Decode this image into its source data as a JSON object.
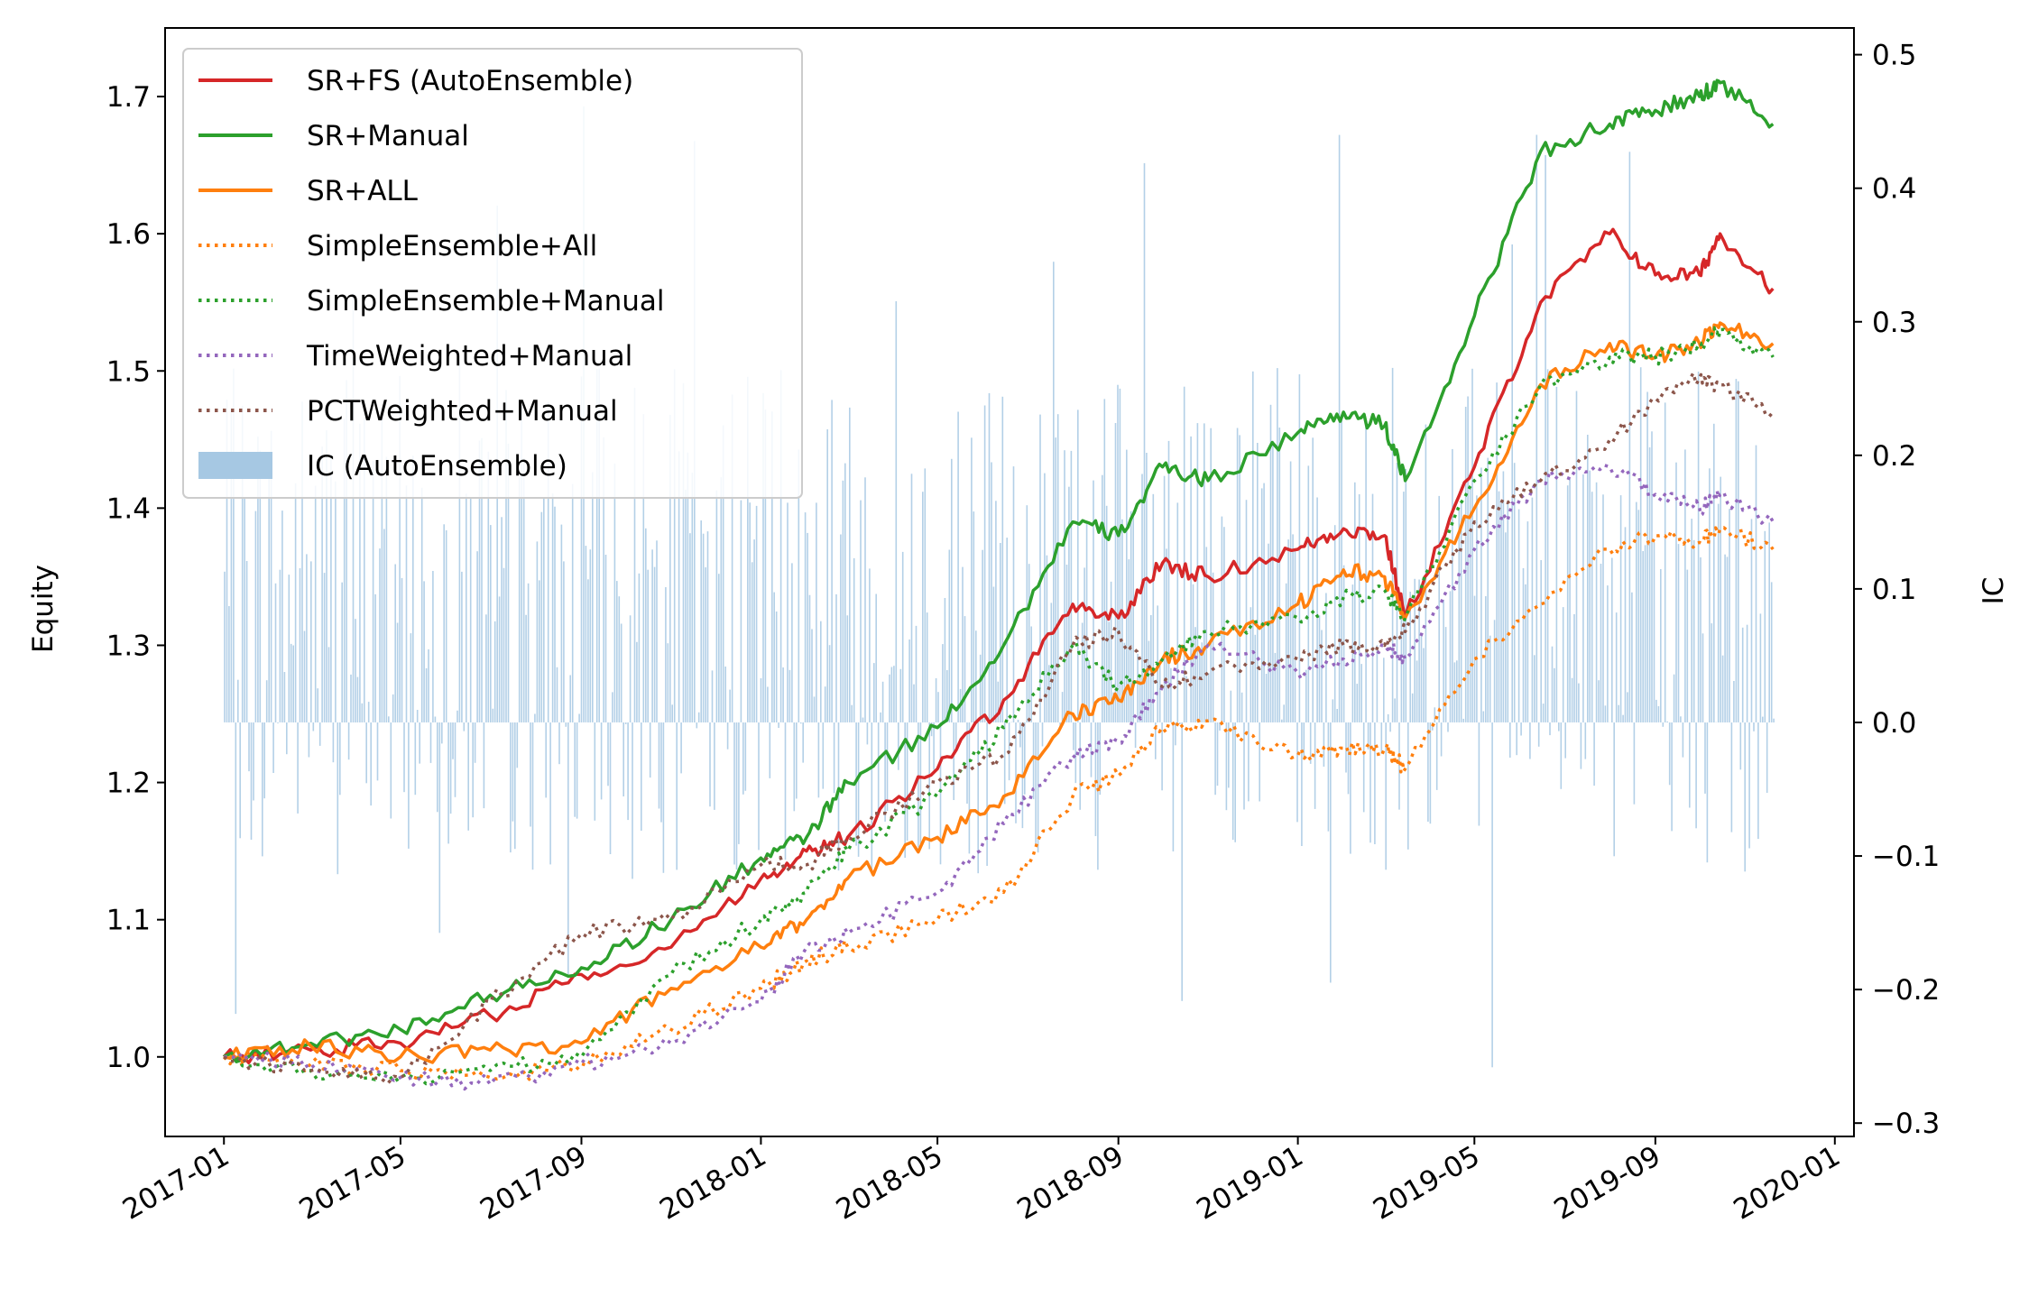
{
  "chart_data": {
    "type": "line",
    "xlabel": "",
    "ylabel": "Equity",
    "y2label": "IC",
    "xlim": [
      "2016-11-22",
      "2020-01-14"
    ],
    "ylim": [
      0.942,
      1.75
    ],
    "y2lim": [
      -0.31,
      0.52
    ],
    "xticks": [
      "2017-01-01",
      "2017-05-01",
      "2017-09-01",
      "2018-01-01",
      "2018-05-01",
      "2018-09-01",
      "2019-01-01",
      "2019-05-01",
      "2019-09-01",
      "2020-01-01"
    ],
    "xtick_labels": [
      "2017-01",
      "2017-05",
      "2017-09",
      "2018-01",
      "2018-05",
      "2018-09",
      "2019-01",
      "2019-05",
      "2019-09",
      "2020-01"
    ],
    "yticks": [
      "1.0",
      "1.1",
      "1.2",
      "1.3",
      "1.4",
      "1.5",
      "1.6",
      "1.7"
    ],
    "y2ticks": [
      "−0.3",
      "−0.2",
      "−0.1",
      "0.0",
      "0.1",
      "0.2",
      "0.3",
      "0.4",
      "0.5"
    ],
    "legend_position": "upper-left",
    "grid": false,
    "series": [
      {
        "name": "SR+FS (AutoEnsemble)",
        "color": "#d62728",
        "style": "solid",
        "x": [
          "2017-01-01",
          "2017-03-01",
          "2017-05-01",
          "2017-07-01",
          "2017-09-01",
          "2017-11-01",
          "2018-01-01",
          "2018-02-01",
          "2018-03-01",
          "2018-05-01",
          "2018-06-15",
          "2018-08-01",
          "2018-09-01",
          "2018-10-01",
          "2018-11-01",
          "2019-01-01",
          "2019-02-01",
          "2019-03-01",
          "2019-03-15",
          "2019-05-01",
          "2019-06-15",
          "2019-08-01",
          "2019-09-01",
          "2019-10-01",
          "2019-10-15",
          "2019-11-20"
        ],
        "y": [
          1.0,
          1.005,
          1.01,
          1.03,
          1.06,
          1.08,
          1.13,
          1.15,
          1.16,
          1.21,
          1.26,
          1.33,
          1.32,
          1.36,
          1.35,
          1.37,
          1.385,
          1.38,
          1.32,
          1.43,
          1.55,
          1.6,
          1.57,
          1.57,
          1.6,
          1.56
        ]
      },
      {
        "name": "SR+Manual",
        "color": "#2ca02c",
        "style": "solid",
        "x": [
          "2017-01-01",
          "2017-03-01",
          "2017-05-01",
          "2017-07-01",
          "2017-09-01",
          "2017-11-01",
          "2018-01-01",
          "2018-02-01",
          "2018-03-01",
          "2018-05-01",
          "2018-06-15",
          "2018-08-01",
          "2018-09-01",
          "2018-10-01",
          "2018-11-01",
          "2019-01-01",
          "2019-02-01",
          "2019-03-01",
          "2019-03-15",
          "2019-05-01",
          "2019-06-15",
          "2019-08-01",
          "2019-09-01",
          "2019-10-01",
          "2019-10-15",
          "2019-11-20"
        ],
        "y": [
          1.0,
          1.01,
          1.02,
          1.045,
          1.065,
          1.1,
          1.145,
          1.16,
          1.2,
          1.24,
          1.3,
          1.39,
          1.38,
          1.43,
          1.42,
          1.455,
          1.47,
          1.46,
          1.42,
          1.54,
          1.66,
          1.68,
          1.69,
          1.7,
          1.71,
          1.68
        ]
      },
      {
        "name": "SR+ALL",
        "color": "#ff7f0e",
        "style": "solid",
        "x": [
          "2017-01-01",
          "2017-03-01",
          "2017-05-01",
          "2017-07-01",
          "2017-09-01",
          "2017-11-01",
          "2018-01-01",
          "2018-02-01",
          "2018-03-01",
          "2018-05-01",
          "2018-06-15",
          "2018-08-01",
          "2018-09-01",
          "2018-10-01",
          "2018-11-01",
          "2019-01-01",
          "2019-02-01",
          "2019-03-01",
          "2019-03-15",
          "2019-05-01",
          "2019-06-15",
          "2019-08-01",
          "2019-09-01",
          "2019-10-01",
          "2019-10-15",
          "2019-11-20"
        ],
        "y": [
          1.0,
          1.008,
          1.0,
          1.005,
          1.01,
          1.05,
          1.08,
          1.1,
          1.13,
          1.16,
          1.19,
          1.25,
          1.26,
          1.29,
          1.3,
          1.33,
          1.355,
          1.35,
          1.32,
          1.4,
          1.49,
          1.52,
          1.51,
          1.52,
          1.535,
          1.52
        ]
      },
      {
        "name": "SimpleEnsemble+All",
        "color": "#ff7f0e",
        "style": "dotted",
        "x": [
          "2017-01-01",
          "2017-03-01",
          "2017-05-01",
          "2017-07-01",
          "2017-09-01",
          "2017-11-01",
          "2018-01-01",
          "2018-02-01",
          "2018-03-01",
          "2018-05-01",
          "2018-06-15",
          "2018-08-01",
          "2018-09-01",
          "2018-10-01",
          "2018-11-01",
          "2019-01-01",
          "2019-02-01",
          "2019-03-01",
          "2019-03-15",
          "2019-05-01",
          "2019-06-15",
          "2019-08-01",
          "2019-09-01",
          "2019-10-01",
          "2019-10-15",
          "2019-11-20"
        ],
        "y": [
          1.0,
          0.995,
          0.99,
          0.985,
          0.995,
          1.02,
          1.05,
          1.07,
          1.08,
          1.1,
          1.12,
          1.19,
          1.205,
          1.24,
          1.245,
          1.22,
          1.225,
          1.225,
          1.21,
          1.29,
          1.33,
          1.37,
          1.38,
          1.375,
          1.385,
          1.37
        ]
      },
      {
        "name": "SimpleEnsemble+Manual",
        "color": "#2ca02c",
        "style": "dotted",
        "x": [
          "2017-01-01",
          "2017-03-01",
          "2017-05-01",
          "2017-07-01",
          "2017-09-01",
          "2017-11-01",
          "2018-01-01",
          "2018-02-01",
          "2018-03-01",
          "2018-05-01",
          "2018-06-15",
          "2018-08-01",
          "2018-09-01",
          "2018-10-01",
          "2018-11-01",
          "2019-01-01",
          "2019-02-01",
          "2019-03-01",
          "2019-03-15",
          "2019-05-01",
          "2019-06-15",
          "2019-08-01",
          "2019-09-01",
          "2019-10-01",
          "2019-10-15",
          "2019-11-20"
        ],
        "y": [
          1.0,
          0.99,
          0.985,
          0.99,
          1.0,
          1.06,
          1.1,
          1.12,
          1.15,
          1.19,
          1.24,
          1.3,
          1.27,
          1.29,
          1.31,
          1.32,
          1.335,
          1.34,
          1.32,
          1.42,
          1.49,
          1.51,
          1.51,
          1.52,
          1.53,
          1.51
        ]
      },
      {
        "name": "TimeWeighted+Manual",
        "color": "#9467bd",
        "style": "dotted",
        "x": [
          "2017-01-01",
          "2017-03-01",
          "2017-05-01",
          "2017-07-01",
          "2017-09-01",
          "2017-11-01",
          "2018-01-01",
          "2018-02-01",
          "2018-03-01",
          "2018-05-01",
          "2018-06-15",
          "2018-08-01",
          "2018-09-01",
          "2018-10-01",
          "2018-11-01",
          "2019-01-01",
          "2019-02-01",
          "2019-03-01",
          "2019-03-15",
          "2019-05-01",
          "2019-06-15",
          "2019-08-01",
          "2019-09-01",
          "2019-10-01",
          "2019-10-15",
          "2019-11-20"
        ],
        "y": [
          1.0,
          0.995,
          0.985,
          0.98,
          0.995,
          1.01,
          1.04,
          1.08,
          1.09,
          1.12,
          1.17,
          1.22,
          1.23,
          1.27,
          1.3,
          1.28,
          1.29,
          1.3,
          1.29,
          1.37,
          1.42,
          1.43,
          1.41,
          1.4,
          1.41,
          1.39
        ]
      },
      {
        "name": "PCTWeighted+Manual",
        "color": "#8c564b",
        "style": "dotted",
        "x": [
          "2017-01-01",
          "2017-03-01",
          "2017-05-01",
          "2017-07-01",
          "2017-09-01",
          "2017-11-01",
          "2018-01-01",
          "2018-02-01",
          "2018-03-01",
          "2018-05-01",
          "2018-06-15",
          "2018-08-01",
          "2018-09-01",
          "2018-10-01",
          "2018-11-01",
          "2019-01-01",
          "2019-02-01",
          "2019-03-01",
          "2019-03-15",
          "2019-05-01",
          "2019-06-15",
          "2019-08-01",
          "2019-09-01",
          "2019-10-01",
          "2019-10-15",
          "2019-11-20"
        ],
        "y": [
          1.0,
          0.99,
          0.985,
          1.04,
          1.09,
          1.1,
          1.14,
          1.14,
          1.16,
          1.2,
          1.22,
          1.3,
          1.31,
          1.27,
          1.28,
          1.29,
          1.3,
          1.3,
          1.31,
          1.39,
          1.42,
          1.45,
          1.48,
          1.495,
          1.49,
          1.47
        ]
      }
    ],
    "bar_series": {
      "name": "IC (AutoEnsemble)",
      "color": "#a6c8e3",
      "axis": "right",
      "x_start": "2017-01-01",
      "x_end": "2019-11-20",
      "count": 700,
      "range": [
        -0.28,
        0.47
      ]
    }
  }
}
